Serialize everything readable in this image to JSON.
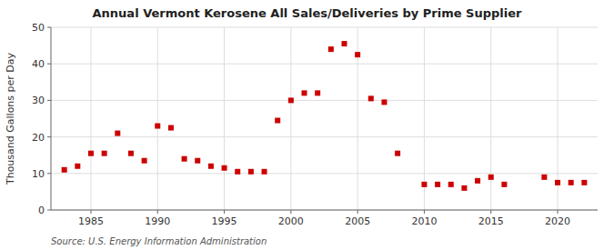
{
  "chart_data": {
    "type": "scatter",
    "title": "Annual Vermont Kerosene All Sales/Deliveries by Prime Supplier",
    "y_label": "Thousand Gallons per Day",
    "annotations": [
      "Source: U.S. Energy Information Administration"
    ],
    "x": [
      1983,
      1984,
      1985,
      1986,
      1987,
      1988,
      1989,
      1990,
      1991,
      1992,
      1993,
      1994,
      1995,
      1996,
      1997,
      1998,
      1999,
      2000,
      2001,
      2002,
      2003,
      2004,
      2005,
      2006,
      2007,
      2008,
      2010,
      2011,
      2012,
      2013,
      2014,
      2015,
      2016,
      2019,
      2020,
      2021,
      2022
    ],
    "values": [
      11.0,
      12.0,
      15.5,
      15.5,
      21.0,
      15.5,
      13.5,
      23.0,
      22.5,
      14.0,
      13.5,
      12.0,
      11.5,
      10.5,
      10.5,
      10.5,
      24.5,
      30.0,
      32.0,
      32.0,
      44.0,
      45.5,
      42.5,
      30.5,
      29.5,
      15.5,
      7.0,
      7.0,
      7.0,
      6.0,
      8.0,
      9.0,
      7.0,
      9.0,
      7.5,
      7.5,
      7.5
    ],
    "color": "#cc0000",
    "marker": "square",
    "xlim": [
      1982,
      2023
    ],
    "ylim": [
      0,
      50
    ],
    "xticks": [
      1985,
      1990,
      1995,
      2000,
      2005,
      2010,
      2015,
      2020
    ],
    "yticks": [
      0,
      10,
      20,
      30,
      40,
      50
    ],
    "grid": true
  }
}
